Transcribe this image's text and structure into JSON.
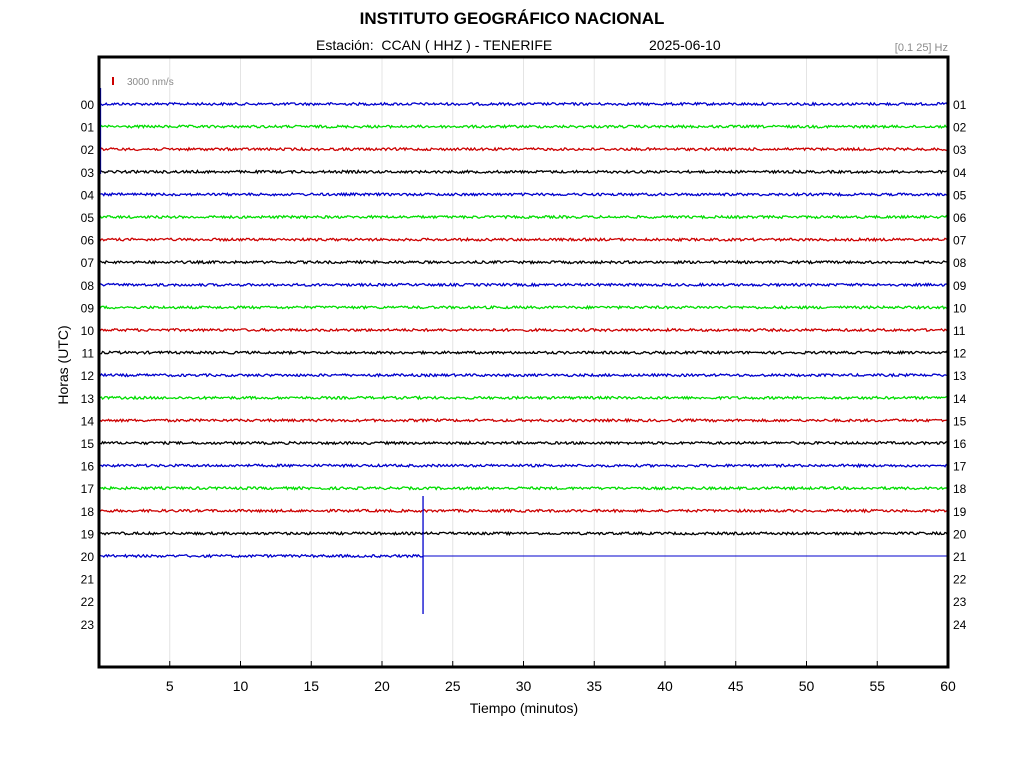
{
  "title": "INSTITUTO GEOGRÁFICO NACIONAL",
  "station_label": "Estación:  CCAN ( HHZ ) - TENERIFE",
  "date": "2025-06-10",
  "filter": "[0.1 25] Hz",
  "scale_label": "3000 nm/s",
  "chart_data": {
    "type": "line",
    "title": "INSTITUTO GEOGRÁFICO NACIONAL",
    "xlabel": "Tiempo (minutos)",
    "ylabel": "Horas (UTC)",
    "xlim": [
      0,
      60
    ],
    "x_ticks": [
      5,
      10,
      15,
      20,
      25,
      30,
      35,
      40,
      45,
      50,
      55,
      60
    ],
    "grid": true,
    "left_hour_labels": [
      "00",
      "01",
      "02",
      "03",
      "04",
      "05",
      "06",
      "07",
      "08",
      "09",
      "10",
      "11",
      "12",
      "13",
      "14",
      "15",
      "16",
      "17",
      "18",
      "19",
      "20",
      "21",
      "22",
      "23"
    ],
    "right_hour_labels": [
      "01",
      "02",
      "03",
      "04",
      "05",
      "06",
      "07",
      "08",
      "09",
      "10",
      "11",
      "12",
      "13",
      "14",
      "15",
      "16",
      "17",
      "18",
      "19",
      "20",
      "21",
      "22",
      "23",
      "24"
    ],
    "trace_colors": [
      "#0000cc",
      "#00dd00",
      "#cc0000",
      "#000000"
    ],
    "recorded_hours": 21,
    "last_trace_end_minute": 22.9,
    "event": {
      "hour": "20",
      "minute": 22.9,
      "label": ""
    }
  }
}
